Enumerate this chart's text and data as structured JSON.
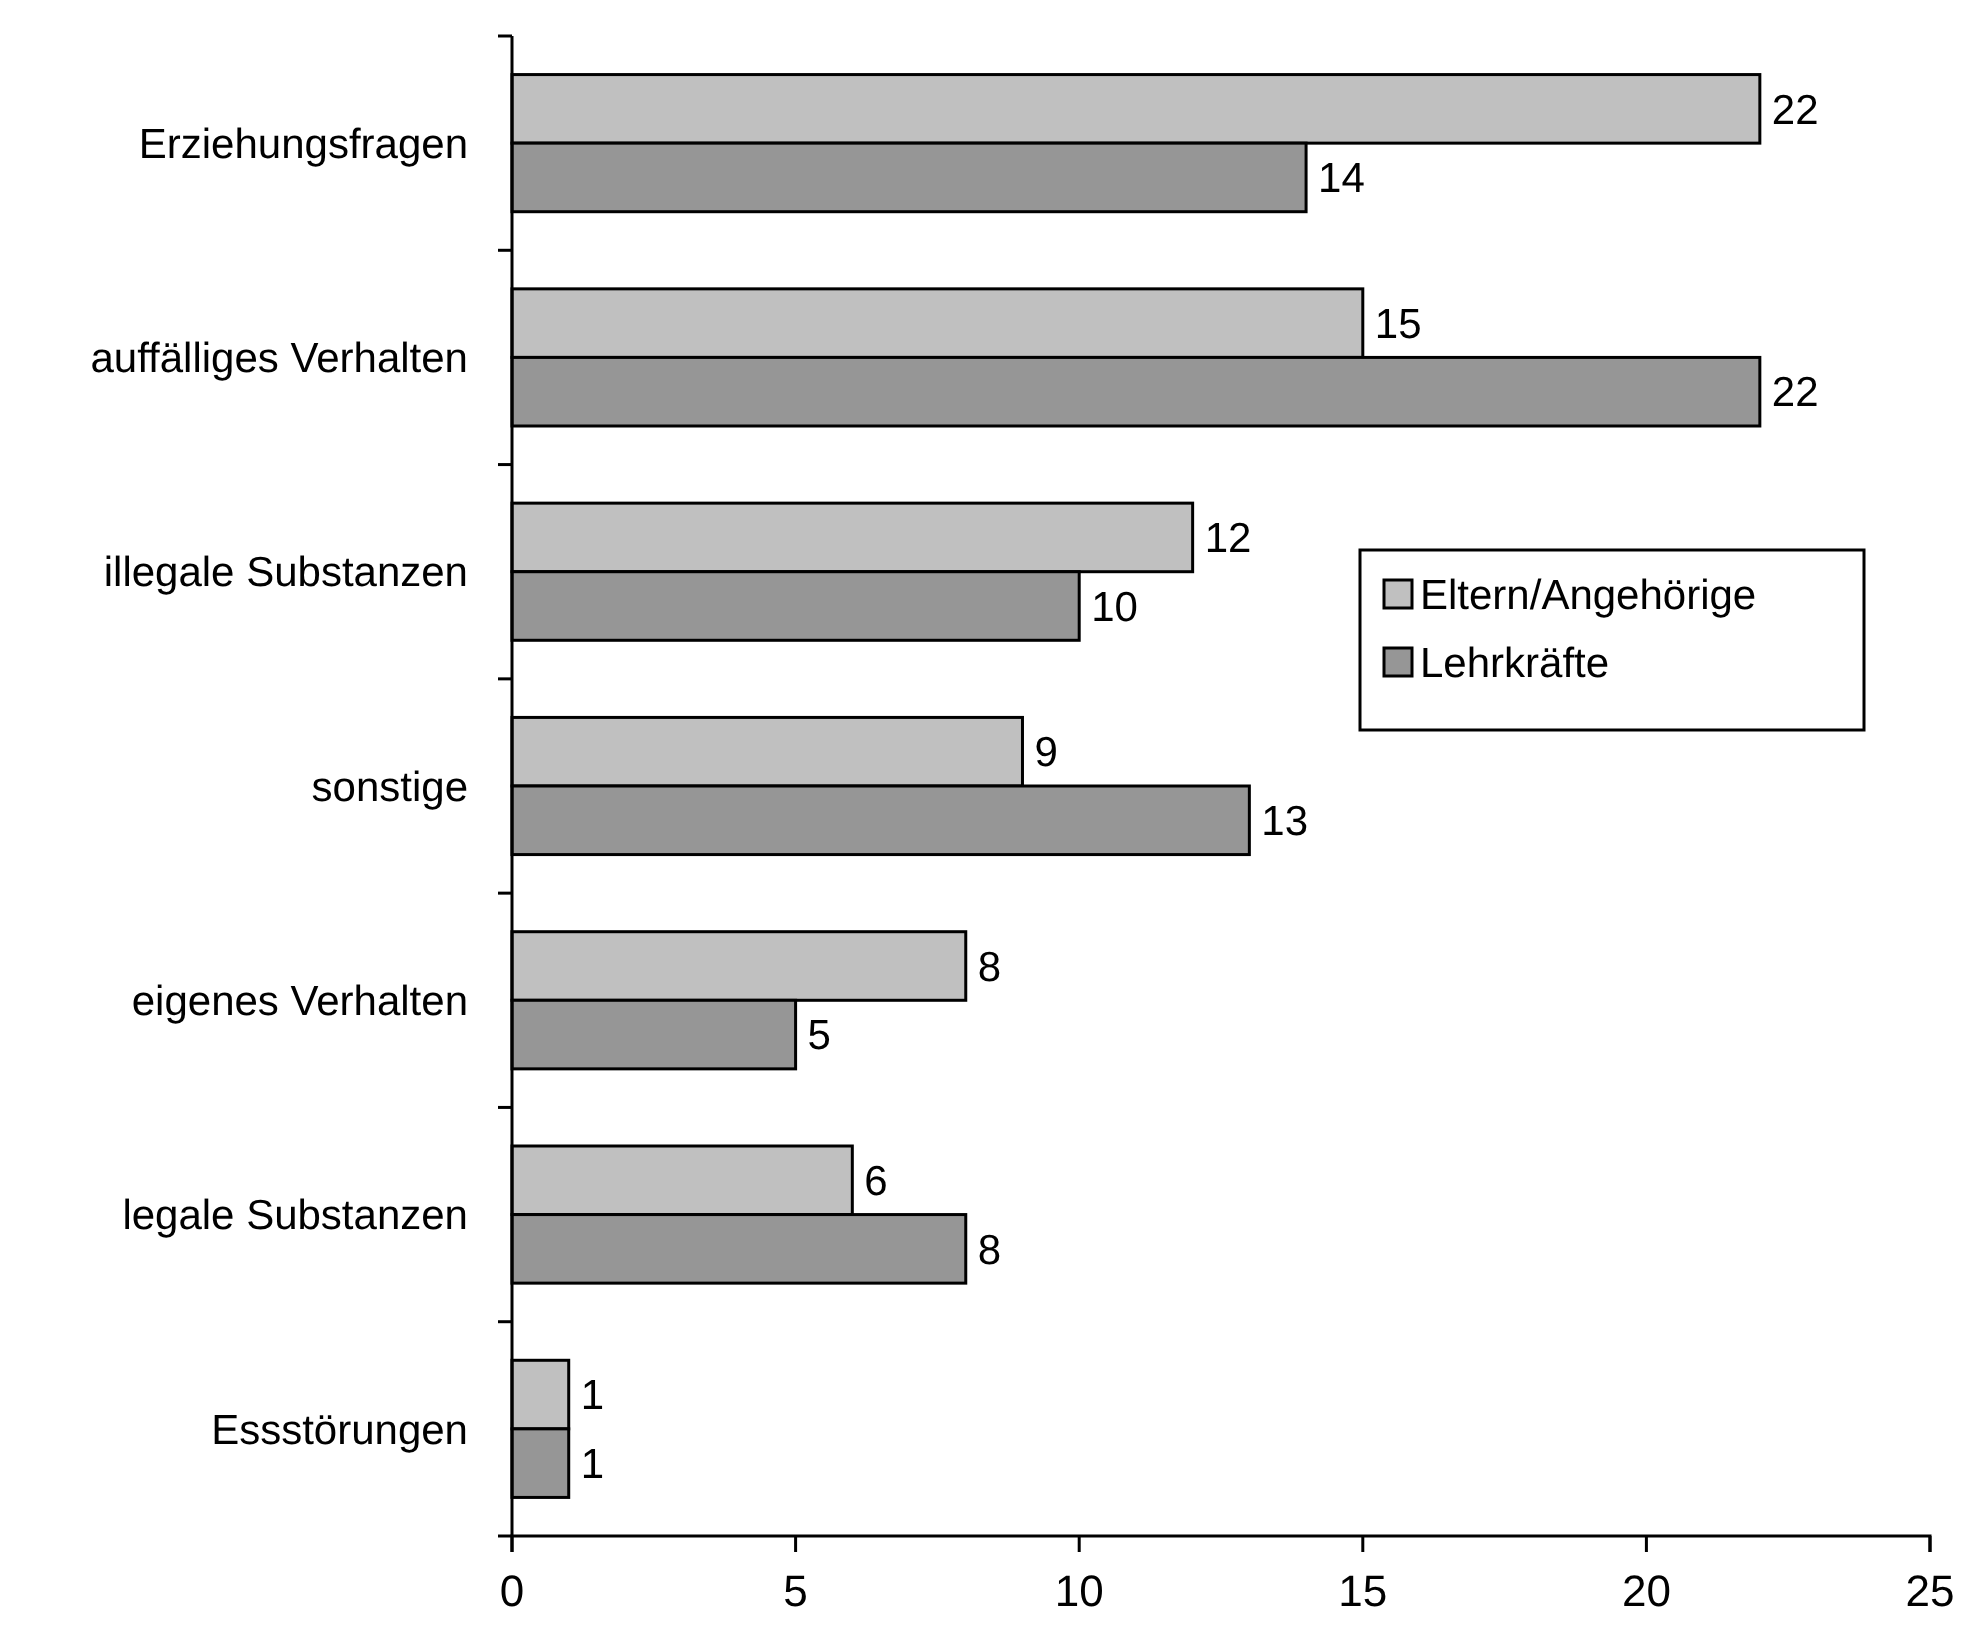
{
  "chart_data": {
    "type": "bar",
    "orientation": "horizontal",
    "categories": [
      "Erziehungsfragen",
      "auffälliges Verhalten",
      "illegale Substanzen",
      "sonstige",
      "eigenes Verhalten",
      "legale Substanzen",
      "Essstörungen"
    ],
    "series": [
      {
        "name": "Eltern/Angehörige",
        "color": "#c0c0c0",
        "values": [
          22,
          15,
          12,
          9,
          8,
          6,
          1
        ]
      },
      {
        "name": "Lehrkräfte",
        "color": "#969696",
        "values": [
          14,
          22,
          10,
          13,
          5,
          8,
          1
        ]
      }
    ],
    "xlim": [
      0,
      25
    ],
    "xticks": [
      0,
      5,
      10,
      15,
      20,
      25
    ],
    "data_labels": true,
    "legend": "right",
    "grid": false
  }
}
